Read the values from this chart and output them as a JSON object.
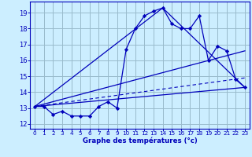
{
  "xlabel": "Graphe des températures (°c)",
  "background_color": "#cceeff",
  "line_color": "#0000bb",
  "grid_color": "#99bbcc",
  "xlim": [
    -0.5,
    23.5
  ],
  "ylim": [
    11.7,
    19.7
  ],
  "yticks": [
    12,
    13,
    14,
    15,
    16,
    17,
    18,
    19
  ],
  "xticks": [
    0,
    1,
    2,
    3,
    4,
    5,
    6,
    7,
    8,
    9,
    10,
    11,
    12,
    13,
    14,
    15,
    16,
    17,
    18,
    19,
    20,
    21,
    22,
    23
  ],
  "main_x": [
    0,
    1,
    2,
    3,
    4,
    5,
    6,
    7,
    8,
    9,
    10,
    11,
    12,
    13,
    14,
    15,
    16,
    17,
    18,
    19,
    20,
    21,
    22,
    23
  ],
  "main_y": [
    13.1,
    13.1,
    12.6,
    12.8,
    12.5,
    12.5,
    12.5,
    13.1,
    13.4,
    13.0,
    16.7,
    18.0,
    18.8,
    19.1,
    19.3,
    18.3,
    18.0,
    18.0,
    18.8,
    16.0,
    16.9,
    16.6,
    14.8,
    14.3
  ],
  "line1_x": [
    0,
    23
  ],
  "line1_y": [
    13.1,
    14.3
  ],
  "line2_x": [
    0,
    14,
    23
  ],
  "line2_y": [
    13.1,
    19.3,
    14.3
  ],
  "line3_x": [
    0,
    23
  ],
  "line3_y": [
    13.1,
    16.6
  ],
  "line4_x": [
    0,
    23
  ],
  "line4_y": [
    13.1,
    14.9
  ]
}
